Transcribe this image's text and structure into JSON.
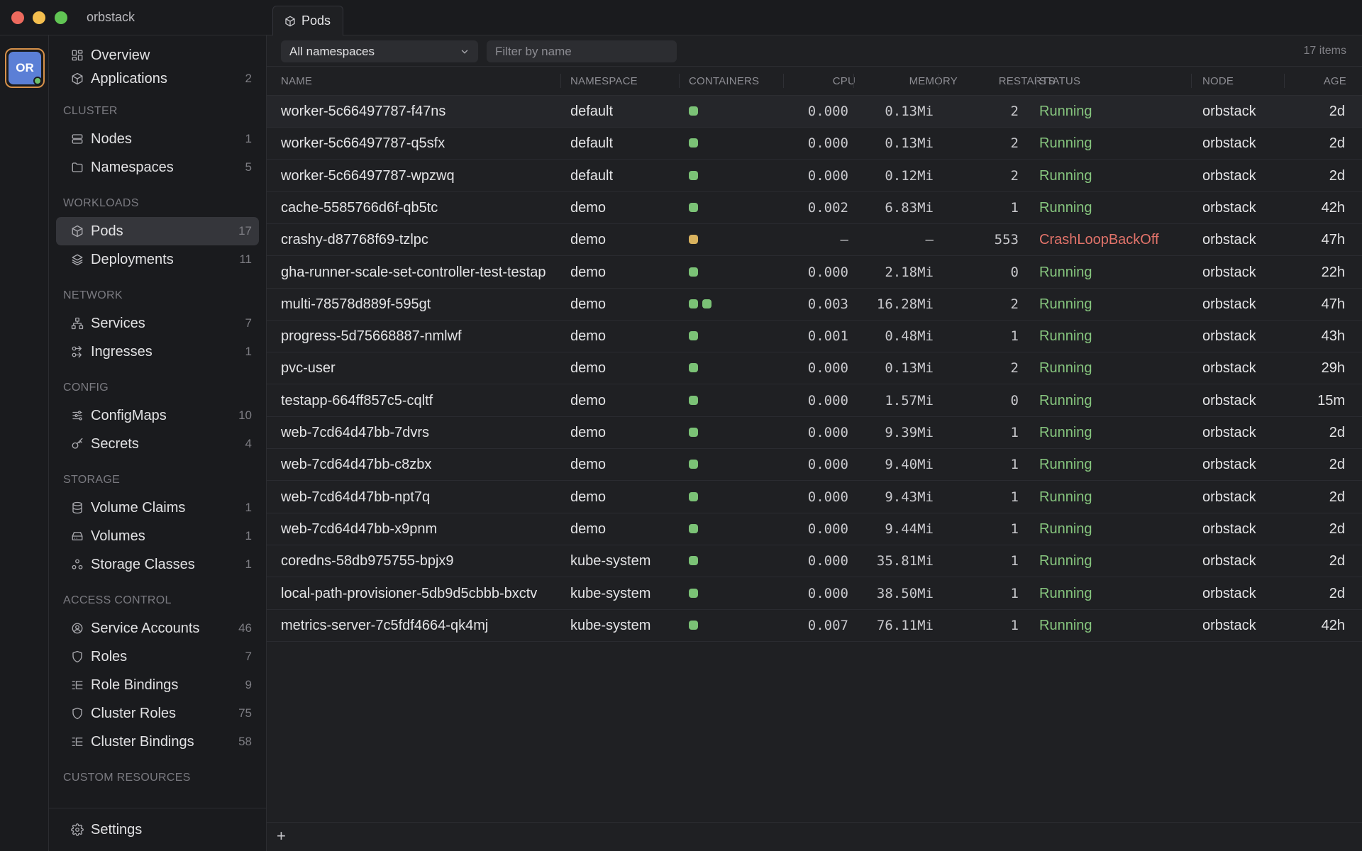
{
  "window": {
    "title": "orbstack"
  },
  "context": {
    "avatar_text": "OR",
    "accent": "#5b7fd6",
    "status_color": "#6fc26b"
  },
  "sidebar": {
    "top": [
      {
        "label": "Overview",
        "count": "",
        "icon": "overview-icon"
      },
      {
        "label": "Applications",
        "count": "2",
        "icon": "cube-icon"
      }
    ],
    "sections": [
      {
        "title": "CLUSTER",
        "items": [
          {
            "label": "Nodes",
            "count": "1",
            "icon": "server-icon"
          },
          {
            "label": "Namespaces",
            "count": "5",
            "icon": "folder-icon"
          }
        ]
      },
      {
        "title": "WORKLOADS",
        "items": [
          {
            "label": "Pods",
            "count": "17",
            "icon": "cube-icon",
            "active": true
          },
          {
            "label": "Deployments",
            "count": "11",
            "icon": "layers-icon"
          }
        ]
      },
      {
        "title": "NETWORK",
        "items": [
          {
            "label": "Services",
            "count": "7",
            "icon": "network-icon"
          },
          {
            "label": "Ingresses",
            "count": "1",
            "icon": "ingress-icon"
          }
        ]
      },
      {
        "title": "CONFIG",
        "items": [
          {
            "label": "ConfigMaps",
            "count": "10",
            "icon": "sliders-icon"
          },
          {
            "label": "Secrets",
            "count": "4",
            "icon": "key-icon"
          }
        ]
      },
      {
        "title": "STORAGE",
        "items": [
          {
            "label": "Volume Claims",
            "count": "1",
            "icon": "database-icon"
          },
          {
            "label": "Volumes",
            "count": "1",
            "icon": "drive-icon"
          },
          {
            "label": "Storage Classes",
            "count": "1",
            "icon": "classes-icon"
          }
        ]
      },
      {
        "title": "ACCESS CONTROL",
        "items": [
          {
            "label": "Service Accounts",
            "count": "46",
            "icon": "user-circle-icon"
          },
          {
            "label": "Roles",
            "count": "7",
            "icon": "shield-icon"
          },
          {
            "label": "Role Bindings",
            "count": "9",
            "icon": "list-tree-icon"
          },
          {
            "label": "Cluster Roles",
            "count": "75",
            "icon": "shield-icon"
          },
          {
            "label": "Cluster Bindings",
            "count": "58",
            "icon": "list-tree-icon"
          }
        ]
      },
      {
        "title": "CUSTOM RESOURCES",
        "items": []
      }
    ],
    "settings_label": "Settings"
  },
  "tab": {
    "label": "Pods"
  },
  "toolbar": {
    "namespace_value": "All namespaces",
    "filter_placeholder": "Filter by name",
    "items_count": "17 items"
  },
  "table": {
    "columns": [
      "NAME",
      "NAMESPACE",
      "CONTAINERS",
      "CPU",
      "MEMORY",
      "RESTARTS",
      "STATUS",
      "NODE",
      "AGE"
    ],
    "rows": [
      {
        "name": "worker-5c66497787-f47ns",
        "namespace": "default",
        "containers": [
          "ok"
        ],
        "cpu": "0.000",
        "memory": "0.13Mi",
        "restarts": "2",
        "status": "Running",
        "node": "orbstack",
        "age": "2d"
      },
      {
        "name": "worker-5c66497787-q5sfx",
        "namespace": "default",
        "containers": [
          "ok"
        ],
        "cpu": "0.000",
        "memory": "0.13Mi",
        "restarts": "2",
        "status": "Running",
        "node": "orbstack",
        "age": "2d"
      },
      {
        "name": "worker-5c66497787-wpzwq",
        "namespace": "default",
        "containers": [
          "ok"
        ],
        "cpu": "0.000",
        "memory": "0.12Mi",
        "restarts": "2",
        "status": "Running",
        "node": "orbstack",
        "age": "2d"
      },
      {
        "name": "cache-5585766d6f-qb5tc",
        "namespace": "demo",
        "containers": [
          "ok"
        ],
        "cpu": "0.002",
        "memory": "6.83Mi",
        "restarts": "1",
        "status": "Running",
        "node": "orbstack",
        "age": "42h"
      },
      {
        "name": "crashy-d87768f69-tzlpc",
        "namespace": "demo",
        "containers": [
          "warn"
        ],
        "cpu": "–",
        "memory": "–",
        "restarts": "553",
        "status": "CrashLoopBackOff",
        "node": "orbstack",
        "age": "47h"
      },
      {
        "name": "gha-runner-scale-set-controller-test-testap",
        "namespace": "demo",
        "containers": [
          "ok"
        ],
        "cpu": "0.000",
        "memory": "2.18Mi",
        "restarts": "0",
        "status": "Running",
        "node": "orbstack",
        "age": "22h"
      },
      {
        "name": "multi-78578d889f-595gt",
        "namespace": "demo",
        "containers": [
          "ok",
          "ok"
        ],
        "cpu": "0.003",
        "memory": "16.28Mi",
        "restarts": "2",
        "status": "Running",
        "node": "orbstack",
        "age": "47h"
      },
      {
        "name": "progress-5d75668887-nmlwf",
        "namespace": "demo",
        "containers": [
          "ok"
        ],
        "cpu": "0.001",
        "memory": "0.48Mi",
        "restarts": "1",
        "status": "Running",
        "node": "orbstack",
        "age": "43h"
      },
      {
        "name": "pvc-user",
        "namespace": "demo",
        "containers": [
          "ok"
        ],
        "cpu": "0.000",
        "memory": "0.13Mi",
        "restarts": "2",
        "status": "Running",
        "node": "orbstack",
        "age": "29h"
      },
      {
        "name": "testapp-664ff857c5-cqltf",
        "namespace": "demo",
        "containers": [
          "ok"
        ],
        "cpu": "0.000",
        "memory": "1.57Mi",
        "restarts": "0",
        "status": "Running",
        "node": "orbstack",
        "age": "15m"
      },
      {
        "name": "web-7cd64d47bb-7dvrs",
        "namespace": "demo",
        "containers": [
          "ok"
        ],
        "cpu": "0.000",
        "memory": "9.39Mi",
        "restarts": "1",
        "status": "Running",
        "node": "orbstack",
        "age": "2d"
      },
      {
        "name": "web-7cd64d47bb-c8zbx",
        "namespace": "demo",
        "containers": [
          "ok"
        ],
        "cpu": "0.000",
        "memory": "9.40Mi",
        "restarts": "1",
        "status": "Running",
        "node": "orbstack",
        "age": "2d"
      },
      {
        "name": "web-7cd64d47bb-npt7q",
        "namespace": "demo",
        "containers": [
          "ok"
        ],
        "cpu": "0.000",
        "memory": "9.43Mi",
        "restarts": "1",
        "status": "Running",
        "node": "orbstack",
        "age": "2d"
      },
      {
        "name": "web-7cd64d47bb-x9pnm",
        "namespace": "demo",
        "containers": [
          "ok"
        ],
        "cpu": "0.000",
        "memory": "9.44Mi",
        "restarts": "1",
        "status": "Running",
        "node": "orbstack",
        "age": "2d"
      },
      {
        "name": "coredns-58db975755-bpjx9",
        "namespace": "kube-system",
        "containers": [
          "ok"
        ],
        "cpu": "0.000",
        "memory": "35.81Mi",
        "restarts": "1",
        "status": "Running",
        "node": "orbstack",
        "age": "2d"
      },
      {
        "name": "local-path-provisioner-5db9d5cbbb-bxctv",
        "namespace": "kube-system",
        "containers": [
          "ok"
        ],
        "cpu": "0.000",
        "memory": "38.50Mi",
        "restarts": "1",
        "status": "Running",
        "node": "orbstack",
        "age": "2d"
      },
      {
        "name": "metrics-server-7c5fdf4664-qk4mj",
        "namespace": "kube-system",
        "containers": [
          "ok"
        ],
        "cpu": "0.007",
        "memory": "76.11Mi",
        "restarts": "1",
        "status": "Running",
        "node": "orbstack",
        "age": "42h"
      }
    ]
  },
  "colors": {
    "running": "#86c57e",
    "crash": "#e2736a",
    "container_ok": "#7bc276",
    "container_warn": "#d9b25e"
  },
  "footer": {
    "add_label": "+"
  }
}
